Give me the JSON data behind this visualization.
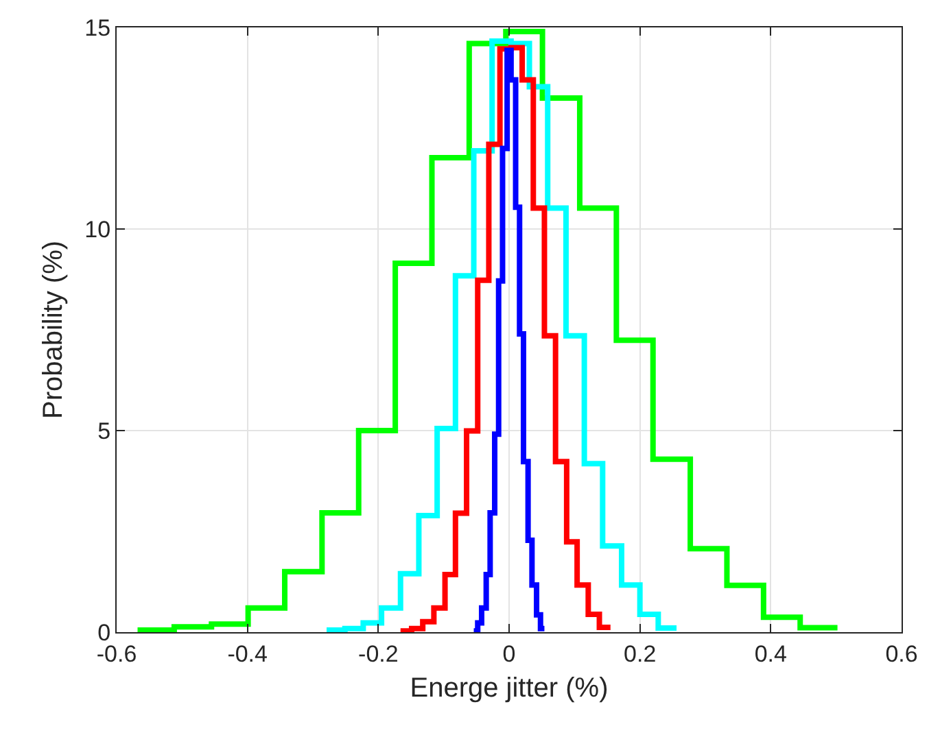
{
  "chart_data": {
    "type": "step",
    "xlabel": "Energe jitter (%)",
    "ylabel": "Probability (%)",
    "xlim": [
      -0.6,
      0.6
    ],
    "xticks": [
      -0.6,
      -0.4,
      -0.2,
      0,
      0.2,
      0.4,
      0.6
    ],
    "ylim": [
      0,
      15
    ],
    "yticks": [
      0,
      5,
      10,
      15
    ],
    "grid": true,
    "series": [
      {
        "color": "#00ff00",
        "x": [
          -0.568,
          -0.512,
          -0.455,
          -0.399,
          -0.343,
          -0.286,
          -0.23,
          -0.174,
          -0.118,
          -0.061,
          -0.005,
          0.051,
          0.108,
          0.164,
          0.22,
          0.277,
          0.333,
          0.389,
          0.445,
          0.502
        ],
        "values": [
          0.05,
          0.13,
          0.2,
          0.6,
          1.5,
          2.96,
          5.0,
          9.15,
          11.77,
          14.6,
          14.9,
          13.25,
          10.52,
          7.24,
          4.29,
          2.07,
          1.16,
          0.37,
          0.11,
          0.11
        ]
      },
      {
        "color": "#00ffff",
        "x": [
          -0.279,
          -0.251,
          -0.223,
          -0.195,
          -0.166,
          -0.138,
          -0.11,
          -0.082,
          -0.054,
          -0.026,
          0.003,
          0.031,
          0.059,
          0.087,
          0.115,
          0.143,
          0.172,
          0.2,
          0.228,
          0.256
        ],
        "values": [
          0.05,
          0.09,
          0.23,
          0.6,
          1.45,
          2.89,
          5.05,
          8.84,
          11.94,
          14.66,
          14.6,
          13.53,
          10.52,
          7.35,
          4.18,
          2.14,
          1.17,
          0.44,
          0.1,
          0.1
        ]
      },
      {
        "color": "#ff0000",
        "x": [
          -0.166,
          -0.149,
          -0.132,
          -0.115,
          -0.098,
          -0.082,
          -0.065,
          -0.048,
          -0.031,
          -0.014,
          0.003,
          0.02,
          0.037,
          0.054,
          0.071,
          0.088,
          0.104,
          0.121,
          0.138,
          0.155
        ],
        "values": [
          0.03,
          0.09,
          0.26,
          0.6,
          1.43,
          2.95,
          4.99,
          8.73,
          12.1,
          14.47,
          14.5,
          13.7,
          10.52,
          7.35,
          4.23,
          2.24,
          1.17,
          0.44,
          0.12,
          0.12
        ]
      },
      {
        "color": "#0000ff",
        "x": [
          -0.054,
          -0.048,
          -0.042,
          -0.035,
          -0.029,
          -0.022,
          -0.016,
          -0.01,
          -0.003,
          0.003,
          0.01,
          0.016,
          0.022,
          0.029,
          0.035,
          0.042,
          0.048,
          0.054
        ],
        "values": [
          0.03,
          0.23,
          0.6,
          1.43,
          2.96,
          4.91,
          8.71,
          12.0,
          14.43,
          13.7,
          10.54,
          7.4,
          4.23,
          2.28,
          1.17,
          0.43,
          0.09,
          0.09
        ]
      }
    ]
  }
}
